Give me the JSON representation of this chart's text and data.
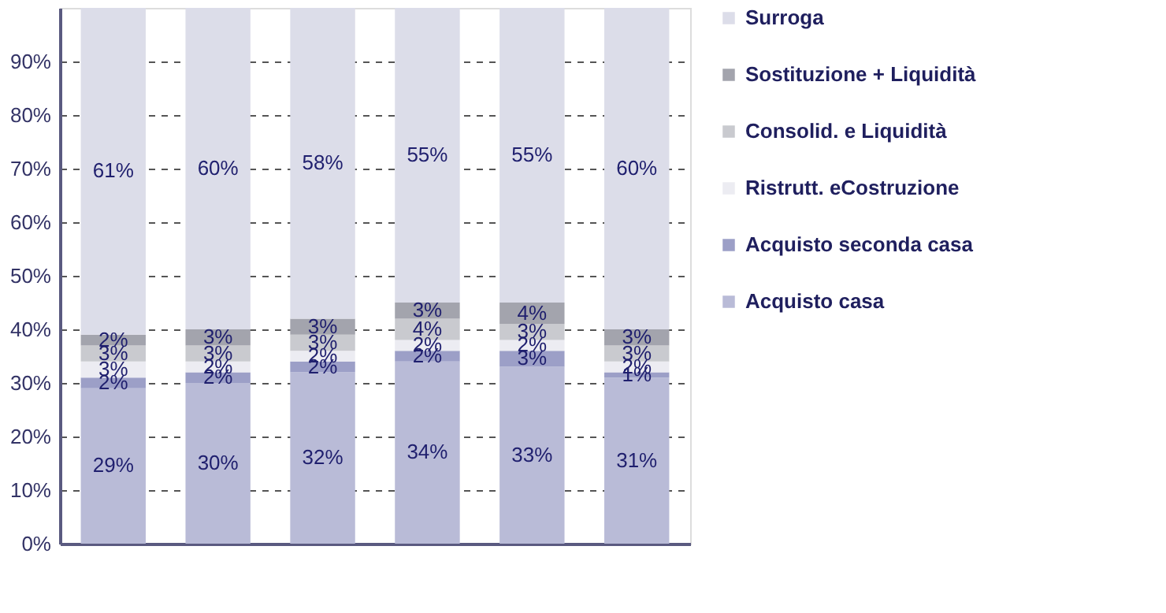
{
  "chart_data": {
    "type": "bar",
    "stacked": true,
    "categories": [
      null,
      null,
      null,
      null,
      null,
      null
    ],
    "series": [
      {
        "name": "Acquisto casa",
        "color": "#b9bbd7",
        "values": [
          29,
          30,
          32,
          34,
          33,
          31
        ],
        "value_labels": [
          "29%",
          "30%",
          "32%",
          "34%",
          "33%",
          "31%"
        ]
      },
      {
        "name": "Acquisto seconda casa",
        "color": "#9c9fc7",
        "values": [
          2,
          2,
          2,
          2,
          3,
          1
        ],
        "value_labels": [
          "2%",
          "2%",
          "2%",
          "2%",
          "3%",
          "1%"
        ]
      },
      {
        "name": "Ristrutt. eCostruzione",
        "color": "#ececf2",
        "values": [
          3,
          2,
          2,
          2,
          2,
          2
        ],
        "value_labels": [
          "3%",
          "2%",
          "2%",
          "2%",
          "2%",
          "2%"
        ]
      },
      {
        "name": "Consolid. e Liquidità",
        "color": "#c9cacf",
        "values": [
          3,
          3,
          3,
          4,
          3,
          3
        ],
        "value_labels": [
          "3%",
          "3%",
          "3%",
          "4%",
          "3%",
          "3%"
        ]
      },
      {
        "name": "Sostituzione + Liquidità",
        "color": "#a3a4ad",
        "values": [
          2,
          3,
          3,
          3,
          4,
          3
        ],
        "value_labels": [
          "2%",
          "3%",
          "3%",
          "3%",
          "4%",
          "3%"
        ]
      },
      {
        "name": "Surroga",
        "color": "#dcdde9",
        "values": [
          61,
          60,
          58,
          55,
          55,
          60
        ],
        "value_labels": [
          "61%",
          "60%",
          "58%",
          "55%",
          "55%",
          "60%"
        ]
      }
    ],
    "ylim": [
      0,
      100
    ],
    "yticks": [
      {
        "value": 0,
        "label": "0%"
      },
      {
        "value": 10,
        "label": "10%"
      },
      {
        "value": 20,
        "label": "20%"
      },
      {
        "value": 30,
        "label": "30%"
      },
      {
        "value": 40,
        "label": "40%"
      },
      {
        "value": 50,
        "label": "50%"
      },
      {
        "value": 60,
        "label": "60%"
      },
      {
        "value": 70,
        "label": "70%"
      },
      {
        "value": 80,
        "label": "80%"
      },
      {
        "value": 90,
        "label": "90%"
      }
    ],
    "grid": "y",
    "legend": "right"
  }
}
